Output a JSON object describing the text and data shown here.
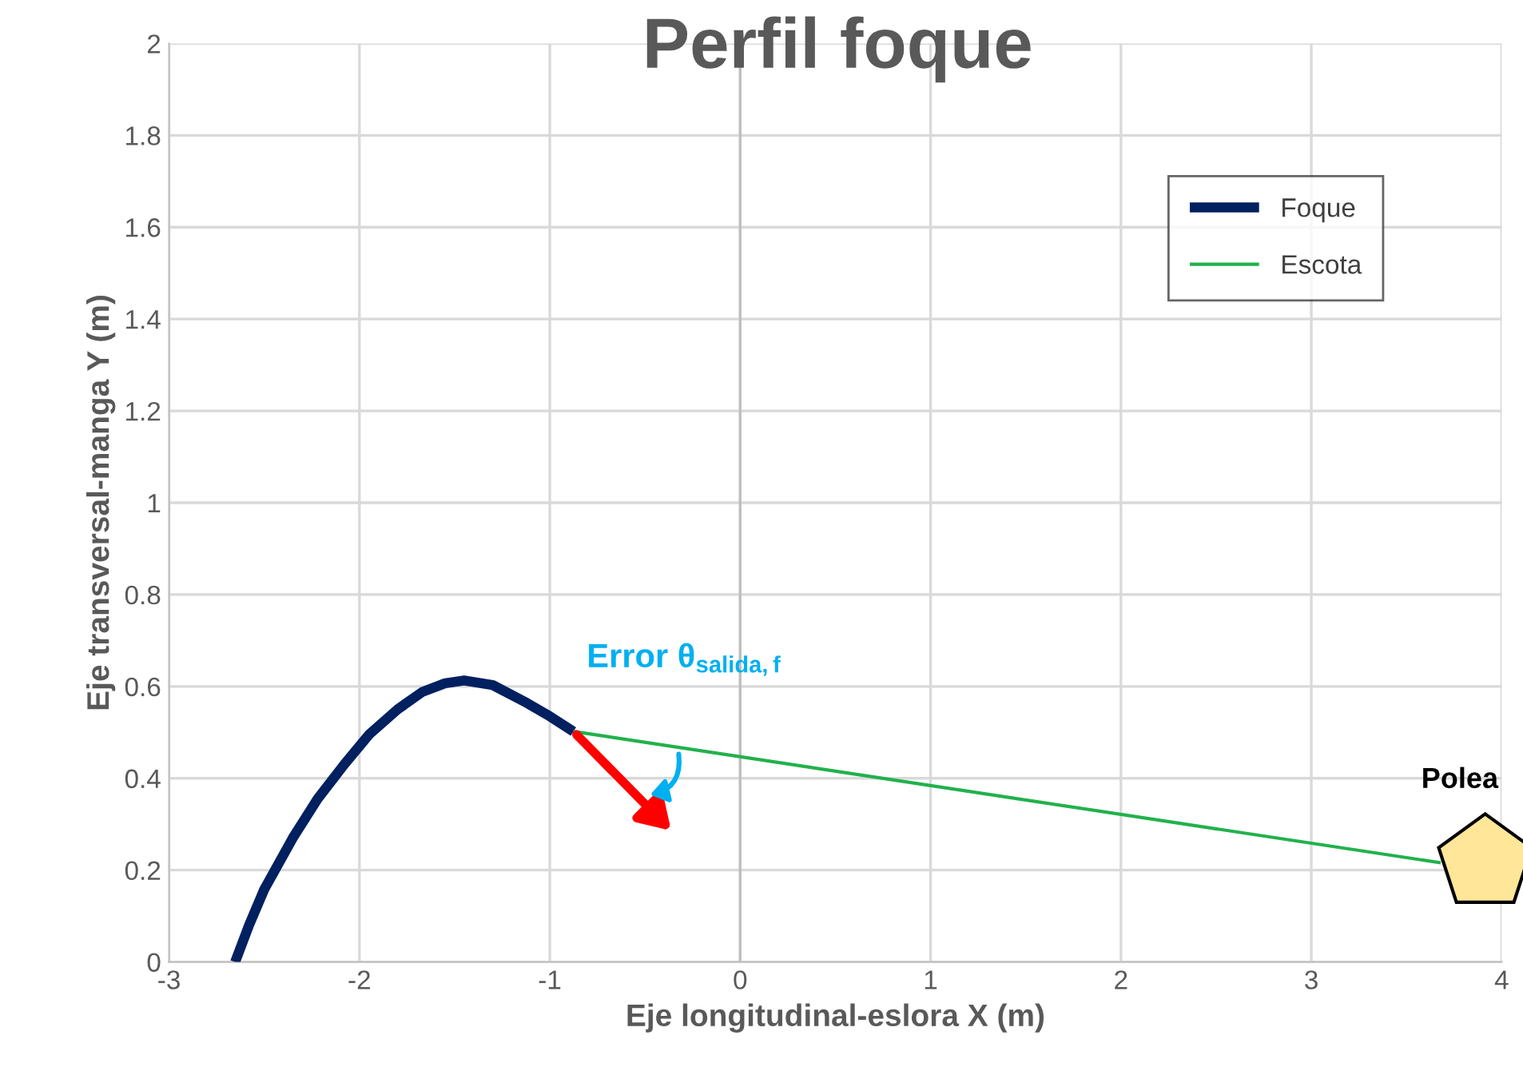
{
  "chart_data": {
    "type": "line",
    "title": "Perfil foque",
    "xlabel": "Eje longitudinal-eslora X (m)",
    "ylabel": "Eje transversal-manga Y (m)",
    "series": [
      {
        "name": "Foque",
        "color": "#002060",
        "x": [
          -2.653,
          -2.58,
          -2.5,
          -2.35,
          -2.22,
          -2.08,
          -1.95,
          -1.8,
          -1.67,
          -1.55,
          -1.45,
          -1.3,
          -1.12,
          -1.0,
          -0.876
        ],
        "values": [
          0,
          0.08,
          0.158,
          0.27,
          0.355,
          0.43,
          0.495,
          0.55,
          0.588,
          0.607,
          0.613,
          0.603,
          0.564,
          0.535,
          0.502
        ]
      },
      {
        "name": "Escota",
        "color": "#22b14c",
        "x": [
          -0.876,
          3.68
        ],
        "values": [
          0.502,
          0.216
        ]
      }
    ],
    "xlim": [
      -3,
      4
    ],
    "xticks": [
      -3,
      -2,
      -1,
      0,
      1,
      2,
      3,
      4
    ],
    "ylim": [
      0,
      2
    ],
    "yticks": [
      0,
      0.2,
      0.4,
      0.6,
      0.8,
      1,
      1.2,
      1.4,
      1.6,
      1.8,
      2
    ],
    "grid": true,
    "legend": "top right",
    "marker": "none",
    "line_style": "solid",
    "annotations": [
      "Error θ$_{salida,f}$",
      "Polea"
    ]
  }
}
